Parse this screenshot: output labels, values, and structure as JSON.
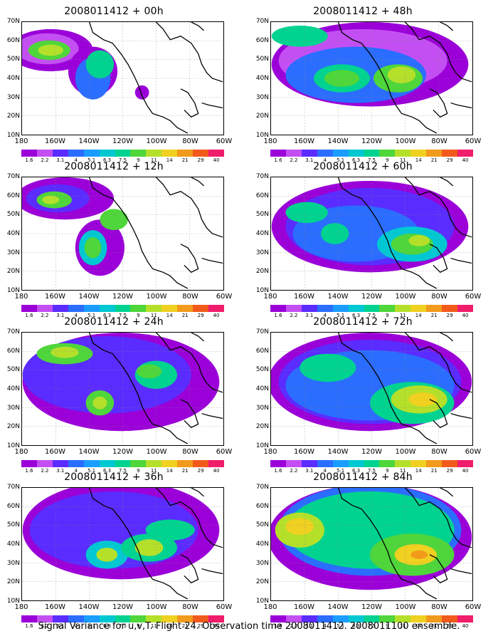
{
  "figure": {
    "footer": "Signal Variance for u,v,T. Flight 24. Observation time 2008011412. 2008011100 ensemble."
  },
  "map_axes": {
    "lat_labels": [
      "70N",
      "60N",
      "50N",
      "40N",
      "30N",
      "20N",
      "10N"
    ],
    "lon_labels": [
      "180",
      "160W",
      "140W",
      "120W",
      "100W",
      "80W",
      "60W"
    ]
  },
  "colorbar": {
    "labels": [
      "1.6",
      "2.2",
      "3.1",
      "4",
      "5.1",
      "6.3",
      "7.5",
      "9",
      "11",
      "14",
      "21",
      "29",
      "40"
    ],
    "colors": [
      "#9b00d8",
      "#c34ff2",
      "#5a2cff",
      "#2b6dff",
      "#1a9dff",
      "#00c8d2",
      "#00d38f",
      "#4fd63a",
      "#b5e02a",
      "#f0d020",
      "#f29a1c",
      "#f25a1c",
      "#f01c6c"
    ]
  },
  "panels": [
    {
      "title": "2008011412 + 00h"
    },
    {
      "title": "2008011412 + 48h"
    },
    {
      "title": "2008011412 + 12h"
    },
    {
      "title": "2008011412 + 60h"
    },
    {
      "title": "2008011412 + 24h"
    },
    {
      "title": "2008011412 + 72h"
    },
    {
      "title": "2008011412 + 36h"
    },
    {
      "title": "2008011412 + 84h"
    }
  ]
}
